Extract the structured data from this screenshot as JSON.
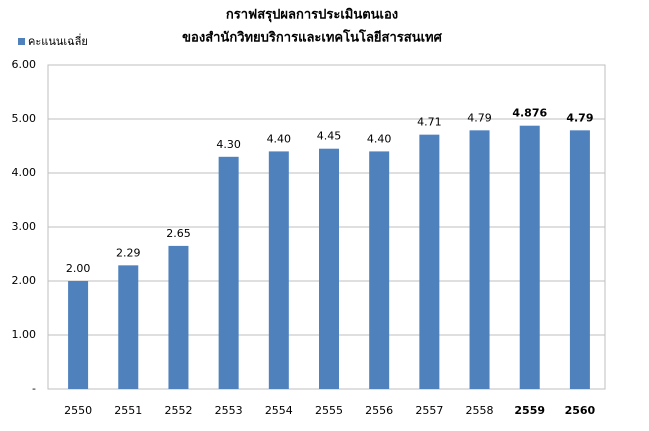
{
  "chart_data": {
    "type": "bar",
    "title": [
      "กราฟสรุปผลการประเมินตนเอง",
      "ของสำนักวิทยบริการและเทคโนโลยีสารสนเทศ"
    ],
    "series": [
      {
        "name": "คะแนนเฉลี่ย",
        "color": "#4f81bd",
        "values": [
          2.0,
          2.29,
          2.65,
          4.3,
          4.4,
          4.45,
          4.4,
          4.71,
          4.79,
          4.876,
          4.79
        ],
        "value_labels": [
          "2.00",
          "2.29",
          "2.65",
          "4.30",
          "4.40",
          "4.45",
          "4.40",
          "4.71",
          "4.79",
          "4.876",
          "4.79"
        ]
      }
    ],
    "categories": [
      "2550",
      "2551",
      "2552",
      "2553",
      "2554",
      "2555",
      "2556",
      "2557",
      "2558",
      "2559",
      "2560"
    ],
    "ylim": [
      0,
      6
    ],
    "yticks": [
      {
        "value": 0,
        "label": "-"
      },
      {
        "value": 1,
        "label": "1.00"
      },
      {
        "value": 2,
        "label": "2.00"
      },
      {
        "value": 3,
        "label": "3.00"
      },
      {
        "value": 4,
        "label": "4.00"
      },
      {
        "value": 5,
        "label": "5.00"
      },
      {
        "value": 6,
        "label": "6.00"
      }
    ],
    "grid": true,
    "legend": "top-left"
  }
}
